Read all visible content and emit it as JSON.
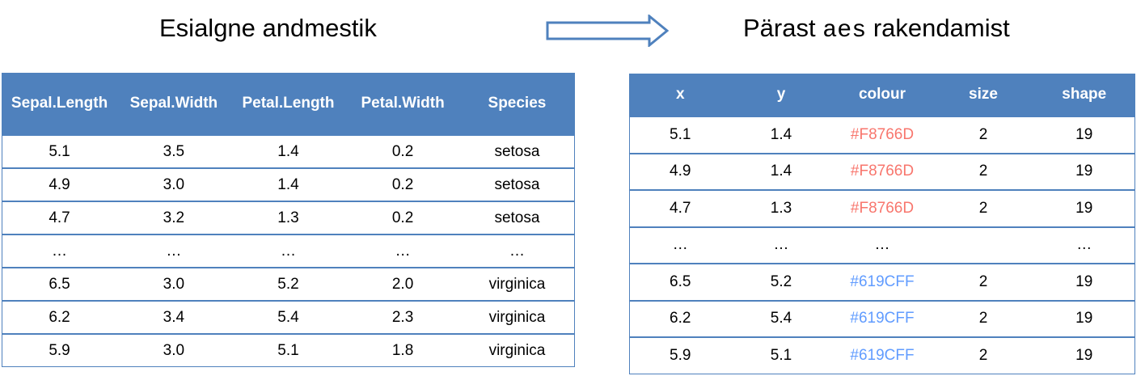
{
  "left_title": "Esialgne andmestik",
  "right_title": {
    "prefix": "Pärast ",
    "code": "aes",
    "suffix": " rakendamist"
  },
  "colors": {
    "header_bg": "#4f81bd",
    "red_colour": "#F8766D",
    "blue_colour": "#619CFF"
  },
  "left_table": {
    "headers": [
      "Sepal.Length",
      "Sepal.Width",
      "Petal.Length",
      "Petal.Width",
      "Species"
    ],
    "rows": [
      [
        "5.1",
        "3.5",
        "1.4",
        "0.2",
        "setosa"
      ],
      [
        "4.9",
        "3.0",
        "1.4",
        "0.2",
        "setosa"
      ],
      [
        "4.7",
        "3.2",
        "1.3",
        "0.2",
        "setosa"
      ],
      [
        "…",
        "…",
        "…",
        "…",
        "…"
      ],
      [
        "6.5",
        "3.0",
        "5.2",
        "2.0",
        "virginica"
      ],
      [
        "6.2",
        "3.4",
        "5.4",
        "2.3",
        "virginica"
      ],
      [
        "5.9",
        "3.0",
        "5.1",
        "1.8",
        "virginica"
      ]
    ]
  },
  "right_table": {
    "headers": [
      "x",
      "y",
      "colour",
      "size",
      "shape"
    ],
    "rows": [
      [
        "5.1",
        "1.4",
        "#F8766D",
        "2",
        "19"
      ],
      [
        "4.9",
        "1.4",
        "#F8766D",
        "2",
        "19"
      ],
      [
        "4.7",
        "1.3",
        "#F8766D",
        "2",
        "19"
      ],
      [
        "…",
        "…",
        "…",
        "",
        "…"
      ],
      [
        "6.5",
        "5.2",
        "#619CFF",
        "2",
        "19"
      ],
      [
        "6.2",
        "5.4",
        "#619CFF",
        "2",
        "19"
      ],
      [
        "5.9",
        "5.1",
        "#619CFF",
        "2",
        "19"
      ]
    ]
  }
}
